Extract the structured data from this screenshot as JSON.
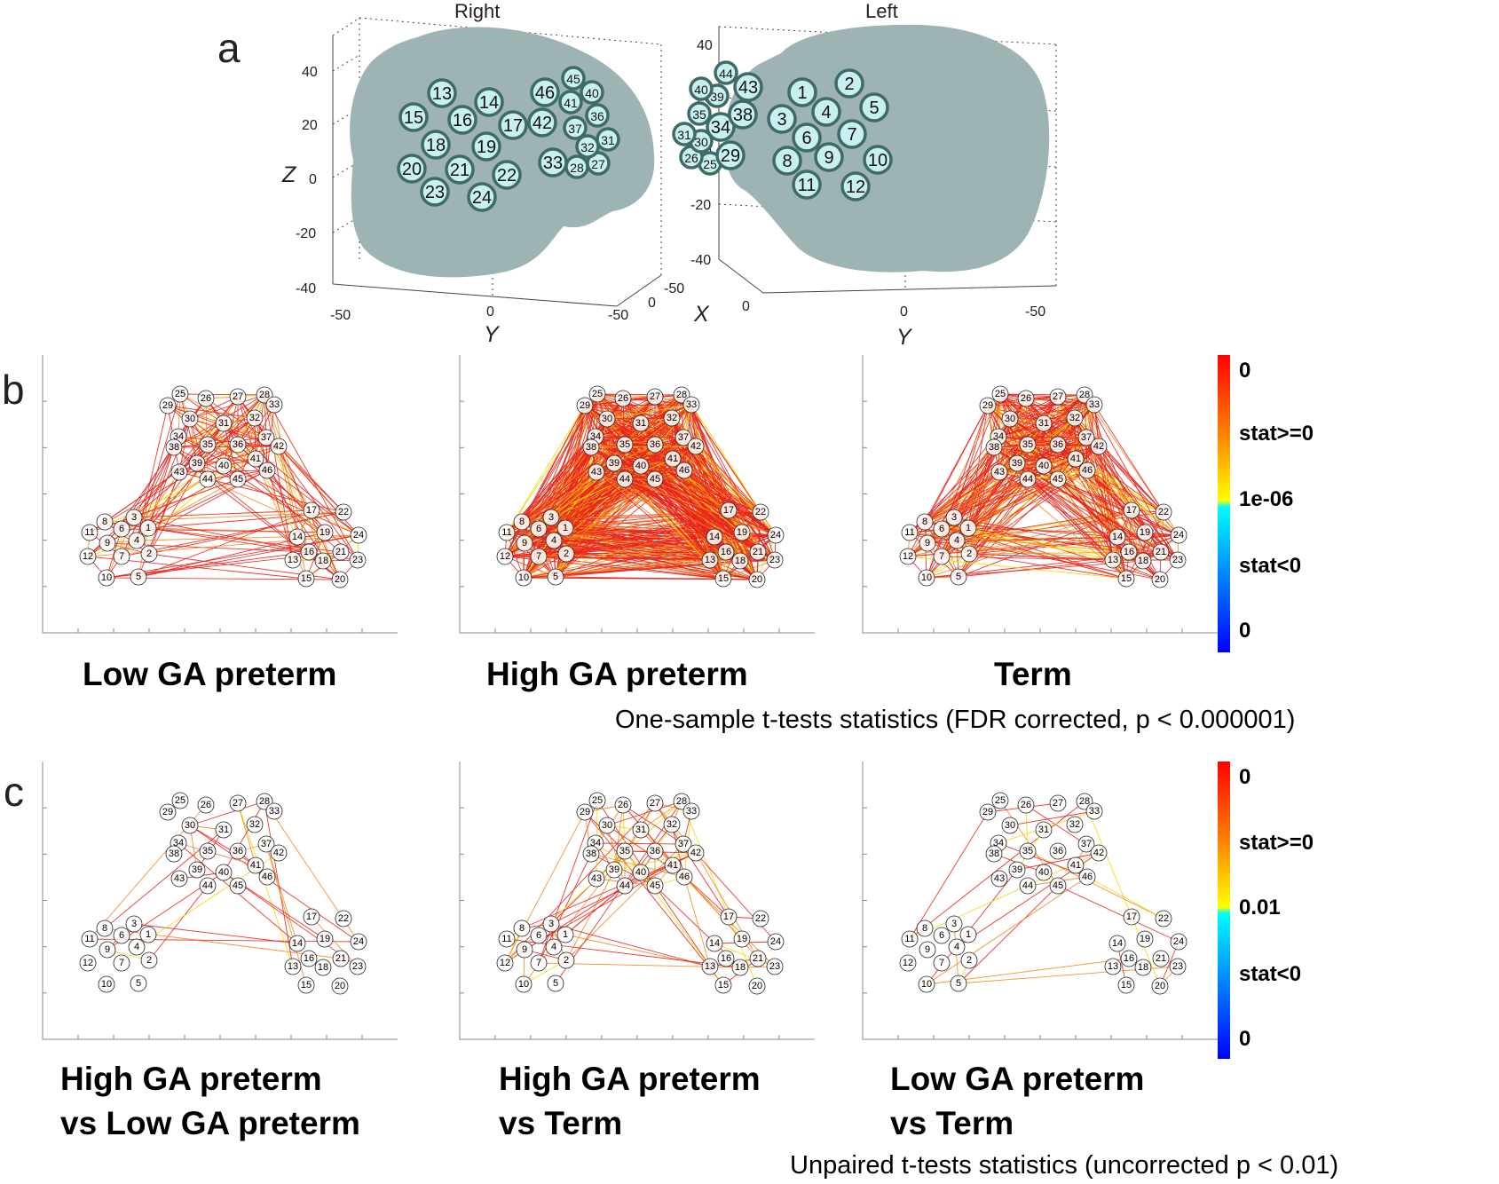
{
  "panel_labels": {
    "a": "a",
    "b": "b",
    "c": "c"
  },
  "panel_a": {
    "hemispheres": [
      {
        "title": "Right",
        "z_ticks": [
          "40",
          "20",
          "0",
          "-20",
          "-40"
        ],
        "y_ticks": [
          "-50",
          "0",
          "-50"
        ],
        "x_ticks": [
          "-50",
          "0"
        ],
        "axis_labels": {
          "z": "Z",
          "y": "Y",
          "x": "X"
        },
        "channels": [
          "13",
          "14",
          "15",
          "16",
          "17",
          "18",
          "19",
          "20",
          "21",
          "22",
          "23",
          "24",
          "27",
          "28",
          "31",
          "32",
          "33",
          "36",
          "37",
          "40",
          "41",
          "42",
          "45",
          "46"
        ]
      },
      {
        "title": "Left",
        "z_ticks": [
          "40",
          "20",
          "0",
          "-20",
          "-40"
        ],
        "y_ticks": [
          "0",
          "-50"
        ],
        "x_ticks": [
          "0"
        ],
        "axis_labels": {
          "y": "Y"
        },
        "channels": [
          "1",
          "2",
          "3",
          "4",
          "5",
          "6",
          "7",
          "8",
          "9",
          "10",
          "11",
          "12",
          "25",
          "26",
          "29",
          "30",
          "31",
          "34",
          "35",
          "38",
          "39",
          "40",
          "43",
          "44"
        ]
      }
    ],
    "brain_color": "#9eb3b3",
    "channel_fill": "#c9f0f0",
    "channel_stroke": "#3f6a66"
  },
  "panel_b": {
    "networks": [
      {
        "title": "Low GA preterm",
        "density": 0.16
      },
      {
        "title": "High GA preterm",
        "density": 0.9
      },
      {
        "title": "Term",
        "density": 0.42
      }
    ],
    "colorbar": {
      "labels": [
        "0",
        "stat>=0",
        "1e-06",
        "stat<0",
        "0"
      ]
    },
    "caption": "One-sample t-tests statistics (FDR corrected, p < 0.000001)"
  },
  "panel_c": {
    "comparisons": [
      {
        "title_line1": "High GA preterm",
        "title_line2": "vs Low GA preterm",
        "density": 0.022
      },
      {
        "title_line1": "High GA preterm",
        "title_line2": "vs Term",
        "density": 0.07
      },
      {
        "title_line1": "Low GA preterm",
        "title_line2": "vs Term",
        "density": 0.018
      }
    ],
    "colorbar": {
      "labels": [
        "0",
        "stat>=0",
        "0.01",
        "stat<0",
        "0"
      ]
    },
    "caption": "Unpaired t-tests statistics (uncorrected p < 0.01)"
  },
  "colors": {
    "edge_red": "#e8231c",
    "edge_orange": "#f28a1e",
    "edge_yellow": "#f5d600"
  }
}
